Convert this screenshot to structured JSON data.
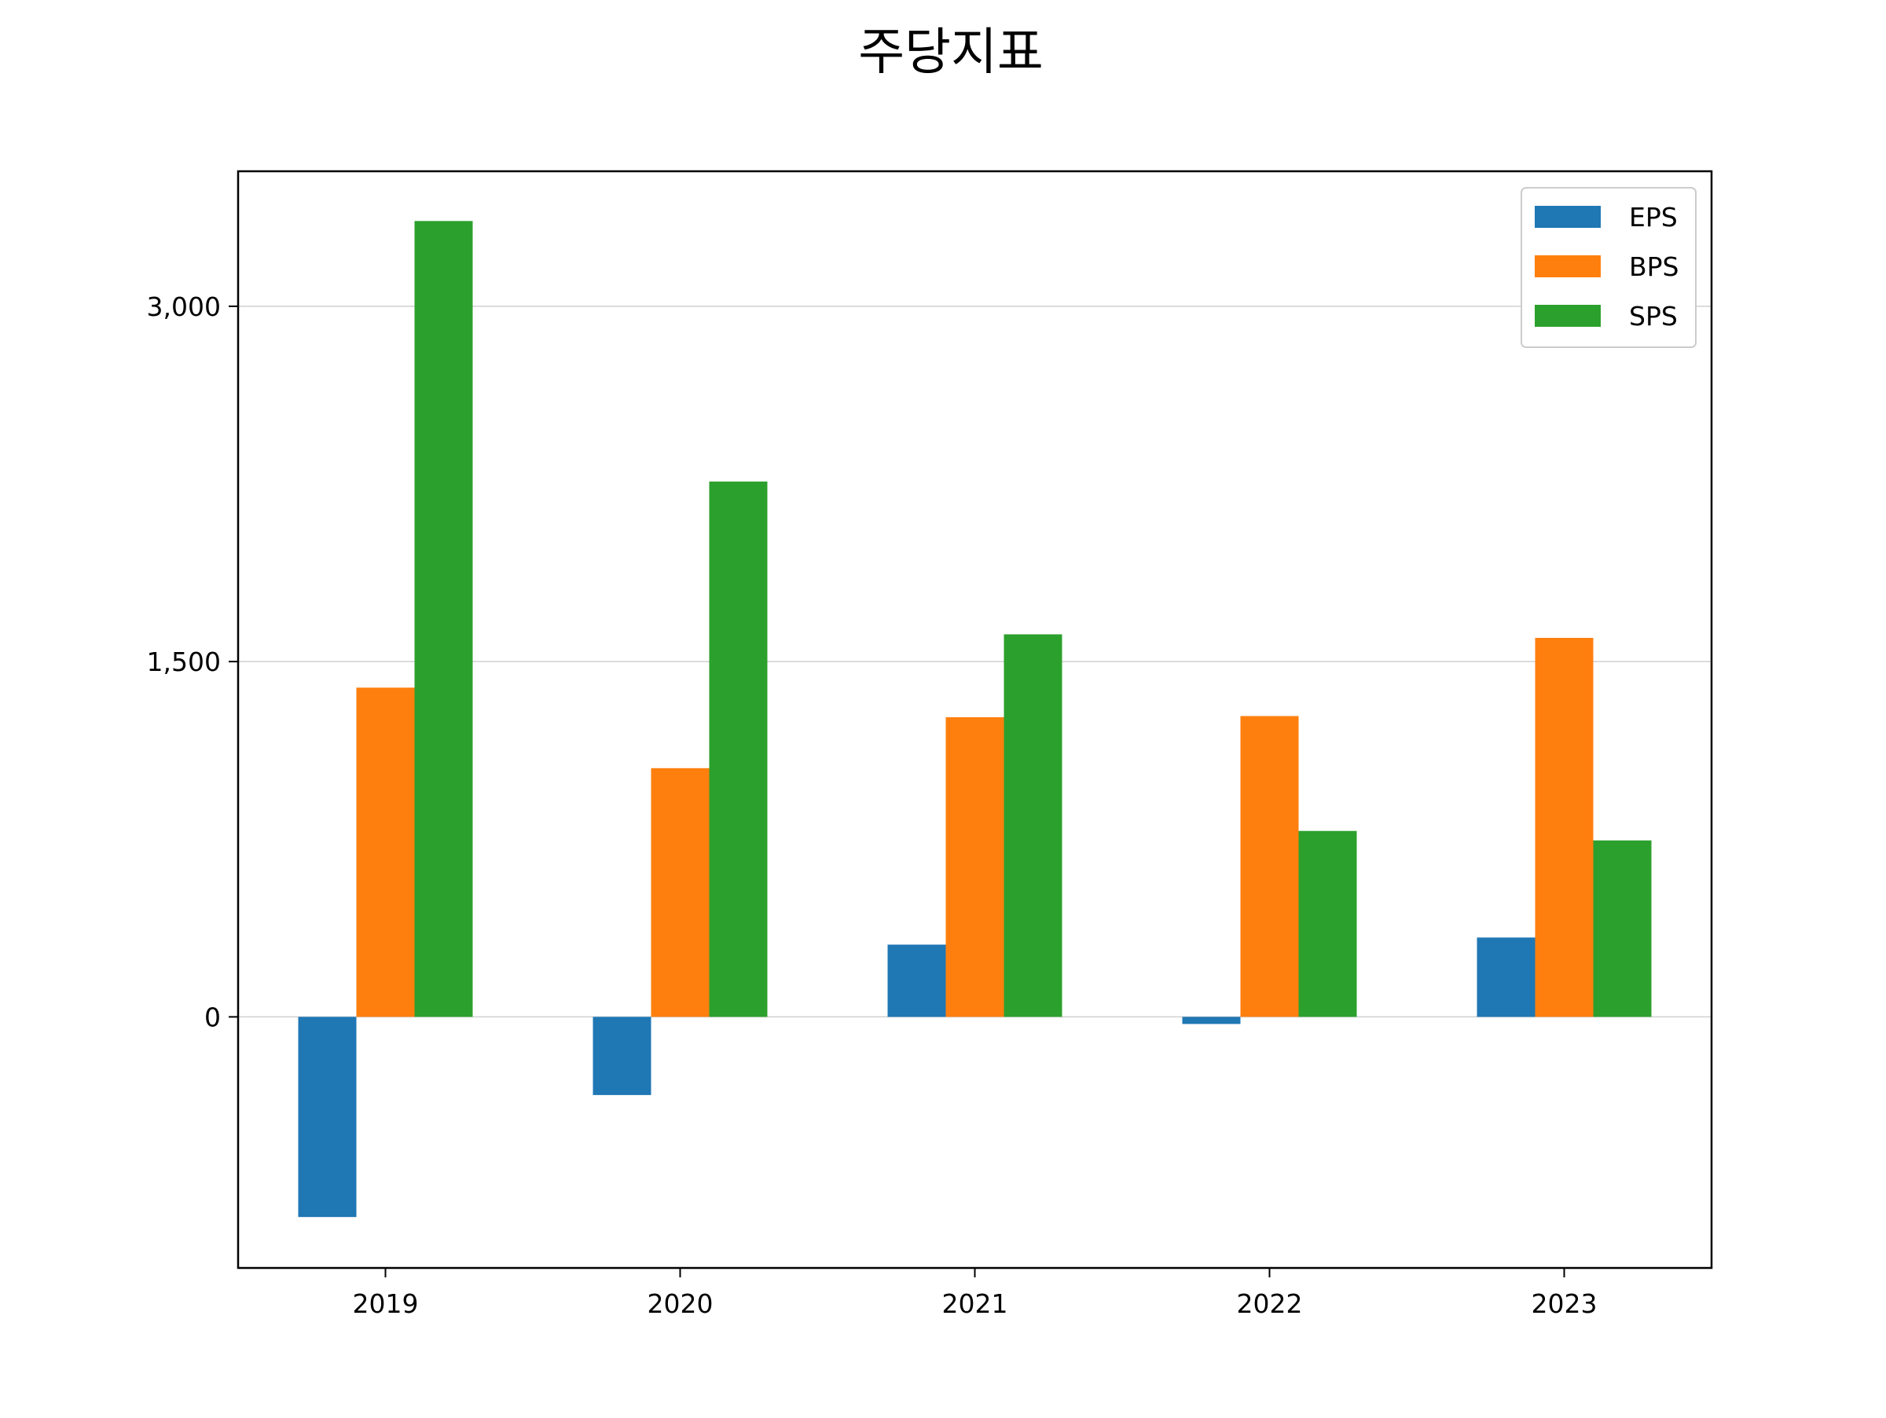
{
  "chart_data": {
    "type": "bar",
    "title": "주당지표",
    "xlabel": "",
    "ylabel": "",
    "categories": [
      "2019",
      "2020",
      "2021",
      "2022",
      "2023"
    ],
    "series": [
      {
        "name": "EPS",
        "color": "#1f77b4",
        "values": [
          -845,
          -330,
          305,
          -30,
          335
        ]
      },
      {
        "name": "BPS",
        "color": "#ff7f0e",
        "values": [
          1390,
          1050,
          1265,
          1270,
          1600
        ]
      },
      {
        "name": "SPS",
        "color": "#2ca02c",
        "values": [
          3360,
          2260,
          1615,
          785,
          745
        ]
      }
    ],
    "yticks": [
      0,
      1500,
      3000
    ],
    "ytick_labels": [
      "0",
      "1,500",
      "3,000"
    ],
    "ylim": [
      -1060,
      3570
    ],
    "grid": "y",
    "legend_position": "top-right"
  }
}
